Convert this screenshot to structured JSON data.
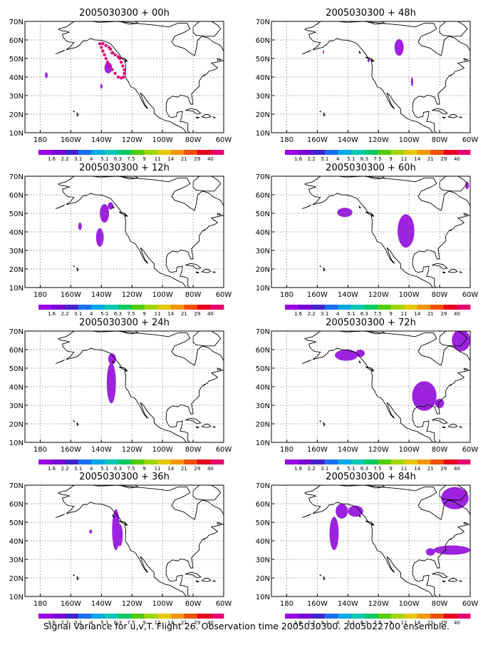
{
  "figure": {
    "caption": "Signal Variance for u,v,T. Flight 26. Observation time 2005030300. 2005022700 ensemble."
  },
  "lat_labels": [
    "10N",
    "20N",
    "30N",
    "40N",
    "50N",
    "60N",
    "70N"
  ],
  "lon_labels": [
    "180",
    "160W",
    "140W",
    "120W",
    "100W",
    "80W",
    "60W"
  ],
  "colorbar": {
    "levels": [
      "1.6",
      "2.2",
      "3.1",
      "4",
      "5.1",
      "6.3",
      "7.5",
      "9",
      "11",
      "14",
      "21",
      "29",
      "40"
    ],
    "colors": [
      "#9900e6",
      "#7a00d4",
      "#4422cc",
      "#1a6ef2",
      "#00a8e6",
      "#00c8b4",
      "#00c864",
      "#50cc00",
      "#a0d400",
      "#e6c800",
      "#f29600",
      "#ee5000",
      "#e6001e",
      "#e6006e"
    ]
  },
  "fill_color": "#9c22e0",
  "obs_color": "#e6007a",
  "panels": [
    {
      "title": "2005030300 + 00h",
      "col": 0,
      "row": 0,
      "blobs": [
        {
          "lon": -135.5,
          "lat": 45,
          "rlon": 2.5,
          "rlat": 3
        },
        {
          "lon": -176,
          "lat": 41,
          "rlon": 0.9,
          "rlat": 1.6
        },
        {
          "lon": -140,
          "lat": 35,
          "rlon": 0.8,
          "rlat": 1.3
        }
      ],
      "obs": [
        [
          -141,
          58
        ],
        [
          -140,
          56
        ],
        [
          -139,
          54
        ],
        [
          -138,
          52
        ],
        [
          -137,
          50
        ],
        [
          -136,
          48
        ],
        [
          -135,
          46
        ],
        [
          -133,
          44
        ],
        [
          -131,
          42
        ],
        [
          -129,
          40
        ],
        [
          -127,
          39.5
        ],
        [
          -125.5,
          40
        ],
        [
          -125,
          42
        ],
        [
          -125,
          44
        ],
        [
          -126,
          46
        ],
        [
          -127,
          48
        ],
        [
          -128,
          50
        ],
        [
          -129,
          51
        ],
        [
          -131,
          52
        ],
        [
          -133,
          53
        ],
        [
          -134,
          55
        ],
        [
          -135,
          56
        ],
        [
          -137,
          57
        ],
        [
          -139,
          58
        ]
      ]
    },
    {
      "title": "2005030300 + 48h",
      "col": 1,
      "row": 0,
      "blobs": [
        {
          "lon": -106.5,
          "lat": 56,
          "rlon": 3,
          "rlat": 4.5
        },
        {
          "lon": -98,
          "lat": 37.5,
          "rlon": 0.7,
          "rlat": 2.5
        },
        {
          "lon": -126.5,
          "lat": 49,
          "rlon": 0.6,
          "rlat": 1.2
        },
        {
          "lon": -156,
          "lat": 53.5,
          "rlon": 0.4,
          "rlat": 1
        }
      ],
      "obs": []
    },
    {
      "title": "2005030300 + 12h",
      "col": 0,
      "row": 1,
      "blobs": [
        {
          "lon": -138,
          "lat": 50,
          "rlon": 3,
          "rlat": 5
        },
        {
          "lon": -141,
          "lat": 37,
          "rlon": 2.5,
          "rlat": 5
        },
        {
          "lon": -134,
          "lat": 54,
          "rlon": 1.8,
          "rlat": 2
        },
        {
          "lon": -154,
          "lat": 43,
          "rlon": 1.2,
          "rlat": 2
        }
      ],
      "obs": []
    },
    {
      "title": "2005030300 + 60h",
      "col": 1,
      "row": 1,
      "blobs": [
        {
          "lon": -102,
          "lat": 40.5,
          "rlon": 5.5,
          "rlat": 9
        },
        {
          "lon": -142,
          "lat": 50.5,
          "rlon": 5,
          "rlat": 2.5
        },
        {
          "lon": -62,
          "lat": 65,
          "rlon": 1.2,
          "rlat": 2
        }
      ],
      "obs": []
    },
    {
      "title": "2005030300 + 24h",
      "col": 0,
      "row": 2,
      "blobs": [
        {
          "lon": -133.5,
          "lat": 42,
          "rlon": 3,
          "rlat": 11
        },
        {
          "lon": -133,
          "lat": 55,
          "rlon": 2.5,
          "rlat": 3
        }
      ],
      "obs": []
    },
    {
      "title": "2005030300 + 72h",
      "col": 1,
      "row": 2,
      "blobs": [
        {
          "lon": -90,
          "lat": 35,
          "rlon": 8,
          "rlat": 8
        },
        {
          "lon": -141,
          "lat": 57,
          "rlon": 7.5,
          "rlat": 3
        },
        {
          "lon": -132,
          "lat": 58,
          "rlon": 3,
          "rlat": 2
        },
        {
          "lon": -66,
          "lat": 65,
          "rlon": 6,
          "rlat": 6
        },
        {
          "lon": -80,
          "lat": 31,
          "rlon": 3,
          "rlat": 2.5
        }
      ],
      "obs": []
    },
    {
      "title": "2005030300 + 36h",
      "col": 0,
      "row": 3,
      "blobs": [
        {
          "lon": -130.5,
          "lat": 46,
          "rlon": 2.5,
          "rlat": 11
        },
        {
          "lon": -128,
          "lat": 43,
          "rlon": 2,
          "rlat": 6
        },
        {
          "lon": -147,
          "lat": 45,
          "rlon": 1,
          "rlat": 1
        }
      ],
      "obs": []
    },
    {
      "title": "2005030300 + 84h",
      "col": 1,
      "row": 3,
      "blobs": [
        {
          "lon": -144,
          "lat": 56,
          "rlon": 4,
          "rlat": 4
        },
        {
          "lon": -135,
          "lat": 56,
          "rlon": 5,
          "rlat": 3
        },
        {
          "lon": -149,
          "lat": 44,
          "rlon": 3,
          "rlat": 9
        },
        {
          "lon": -72,
          "lat": 35,
          "rlon": 12,
          "rlat": 2.5
        },
        {
          "lon": -70,
          "lat": 63,
          "rlon": 9,
          "rlat": 6
        },
        {
          "lon": -86,
          "lat": 34,
          "rlon": 3,
          "rlat": 2
        }
      ],
      "obs": []
    }
  ]
}
